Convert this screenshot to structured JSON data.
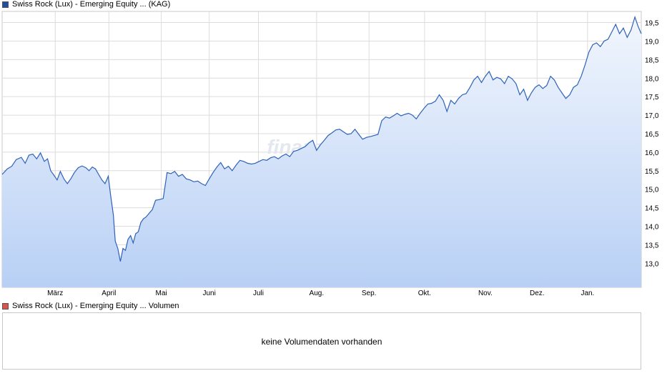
{
  "legend": {
    "price_label": "Swiss Rock (Lux) - Emerging Equity ... (KAG)",
    "price_color": "#1f4fa3",
    "volume_label": "Swiss Rock (Lux) - Emerging Equity ... Volumen",
    "volume_color": "#d9534f"
  },
  "volume": {
    "message": "keine Volumendaten vorhanden"
  },
  "watermark": "finanzen.net",
  "chart_data": {
    "type": "area",
    "y_axis_side": "right",
    "ylim": [
      12.35,
      19.8
    ],
    "y_ticks": [
      13.0,
      13.5,
      14.0,
      14.5,
      15.0,
      15.5,
      16.0,
      16.5,
      17.0,
      17.5,
      18.0,
      18.5,
      19.0,
      19.5
    ],
    "y_tick_labels": [
      "13,0",
      "13,5",
      "14,0",
      "14,5",
      "15,0",
      "15,5",
      "16,0",
      "16,5",
      "17,0",
      "17,5",
      "18,0",
      "18,5",
      "19,0",
      "19,5"
    ],
    "x_ticks": [
      {
        "label": "März",
        "pos": 0.083
      },
      {
        "label": "April",
        "pos": 0.167
      },
      {
        "label": "Mai",
        "pos": 0.249
      },
      {
        "label": "Juni",
        "pos": 0.324
      },
      {
        "label": "Juli",
        "pos": 0.401
      },
      {
        "label": "Aug.",
        "pos": 0.492
      },
      {
        "label": "Sep.",
        "pos": 0.574
      },
      {
        "label": "Okt.",
        "pos": 0.661
      },
      {
        "label": "Nov.",
        "pos": 0.756
      },
      {
        "label": "Dez.",
        "pos": 0.837
      },
      {
        "label": "Jan.",
        "pos": 0.916
      }
    ],
    "grid": true,
    "line_color": "#2e62b8",
    "fill_top_color": "#f2f6fd",
    "fill_bottom_color": "#b8d0f5",
    "series": [
      {
        "points": [
          [
            0.0,
            15.4
          ],
          [
            0.008,
            15.55
          ],
          [
            0.015,
            15.62
          ],
          [
            0.022,
            15.8
          ],
          [
            0.03,
            15.86
          ],
          [
            0.036,
            15.7
          ],
          [
            0.042,
            15.92
          ],
          [
            0.048,
            15.95
          ],
          [
            0.054,
            15.82
          ],
          [
            0.06,
            15.98
          ],
          [
            0.066,
            15.75
          ],
          [
            0.071,
            15.82
          ],
          [
            0.076,
            15.5
          ],
          [
            0.081,
            15.38
          ],
          [
            0.086,
            15.25
          ],
          [
            0.091,
            15.48
          ],
          [
            0.097,
            15.27
          ],
          [
            0.102,
            15.15
          ],
          [
            0.108,
            15.3
          ],
          [
            0.113,
            15.45
          ],
          [
            0.119,
            15.58
          ],
          [
            0.125,
            15.63
          ],
          [
            0.131,
            15.58
          ],
          [
            0.136,
            15.5
          ],
          [
            0.141,
            15.6
          ],
          [
            0.146,
            15.55
          ],
          [
            0.151,
            15.4
          ],
          [
            0.156,
            15.25
          ],
          [
            0.161,
            15.15
          ],
          [
            0.166,
            15.35
          ],
          [
            0.17,
            14.8
          ],
          [
            0.174,
            14.3
          ],
          [
            0.177,
            13.6
          ],
          [
            0.181,
            13.4
          ],
          [
            0.185,
            13.05
          ],
          [
            0.189,
            13.4
          ],
          [
            0.193,
            13.35
          ],
          [
            0.197,
            13.65
          ],
          [
            0.201,
            13.75
          ],
          [
            0.205,
            13.55
          ],
          [
            0.209,
            13.8
          ],
          [
            0.213,
            13.85
          ],
          [
            0.217,
            14.1
          ],
          [
            0.221,
            14.2
          ],
          [
            0.225,
            14.25
          ],
          [
            0.23,
            14.35
          ],
          [
            0.235,
            14.45
          ],
          [
            0.24,
            14.7
          ],
          [
            0.246,
            14.72
          ],
          [
            0.252,
            14.75
          ],
          [
            0.258,
            15.45
          ],
          [
            0.264,
            15.42
          ],
          [
            0.27,
            15.48
          ],
          [
            0.276,
            15.35
          ],
          [
            0.282,
            15.4
          ],
          [
            0.288,
            15.28
          ],
          [
            0.294,
            15.25
          ],
          [
            0.3,
            15.2
          ],
          [
            0.306,
            15.22
          ],
          [
            0.312,
            15.15
          ],
          [
            0.318,
            15.1
          ],
          [
            0.324,
            15.28
          ],
          [
            0.33,
            15.45
          ],
          [
            0.336,
            15.6
          ],
          [
            0.342,
            15.72
          ],
          [
            0.348,
            15.55
          ],
          [
            0.354,
            15.62
          ],
          [
            0.36,
            15.5
          ],
          [
            0.366,
            15.65
          ],
          [
            0.372,
            15.78
          ],
          [
            0.378,
            15.75
          ],
          [
            0.384,
            15.7
          ],
          [
            0.39,
            15.68
          ],
          [
            0.396,
            15.7
          ],
          [
            0.402,
            15.75
          ],
          [
            0.408,
            15.8
          ],
          [
            0.414,
            15.78
          ],
          [
            0.42,
            15.85
          ],
          [
            0.426,
            15.88
          ],
          [
            0.432,
            15.82
          ],
          [
            0.438,
            15.9
          ],
          [
            0.444,
            15.95
          ],
          [
            0.45,
            15.88
          ],
          [
            0.456,
            16.02
          ],
          [
            0.462,
            16.05
          ],
          [
            0.468,
            16.1
          ],
          [
            0.474,
            16.15
          ],
          [
            0.48,
            16.25
          ],
          [
            0.486,
            16.32
          ],
          [
            0.492,
            16.05
          ],
          [
            0.498,
            16.2
          ],
          [
            0.504,
            16.32
          ],
          [
            0.51,
            16.45
          ],
          [
            0.516,
            16.52
          ],
          [
            0.522,
            16.6
          ],
          [
            0.528,
            16.62
          ],
          [
            0.534,
            16.55
          ],
          [
            0.54,
            16.48
          ],
          [
            0.546,
            16.5
          ],
          [
            0.552,
            16.62
          ],
          [
            0.558,
            16.48
          ],
          [
            0.564,
            16.35
          ],
          [
            0.57,
            16.4
          ],
          [
            0.576,
            16.42
          ],
          [
            0.582,
            16.45
          ],
          [
            0.588,
            16.48
          ],
          [
            0.594,
            16.85
          ],
          [
            0.6,
            16.95
          ],
          [
            0.606,
            16.92
          ],
          [
            0.612,
            16.98
          ],
          [
            0.618,
            17.05
          ],
          [
            0.624,
            16.98
          ],
          [
            0.63,
            17.02
          ],
          [
            0.636,
            17.05
          ],
          [
            0.642,
            17.0
          ],
          [
            0.648,
            16.9
          ],
          [
            0.654,
            17.05
          ],
          [
            0.66,
            17.18
          ],
          [
            0.666,
            17.3
          ],
          [
            0.672,
            17.32
          ],
          [
            0.678,
            17.38
          ],
          [
            0.684,
            17.55
          ],
          [
            0.69,
            17.4
          ],
          [
            0.696,
            17.1
          ],
          [
            0.702,
            17.4
          ],
          [
            0.708,
            17.3
          ],
          [
            0.714,
            17.45
          ],
          [
            0.72,
            17.55
          ],
          [
            0.726,
            17.58
          ],
          [
            0.732,
            17.75
          ],
          [
            0.738,
            17.95
          ],
          [
            0.744,
            18.05
          ],
          [
            0.75,
            17.88
          ],
          [
            0.756,
            18.05
          ],
          [
            0.762,
            18.18
          ],
          [
            0.768,
            17.95
          ],
          [
            0.774,
            18.02
          ],
          [
            0.78,
            17.98
          ],
          [
            0.786,
            17.85
          ],
          [
            0.792,
            18.05
          ],
          [
            0.798,
            17.98
          ],
          [
            0.804,
            17.85
          ],
          [
            0.81,
            17.55
          ],
          [
            0.816,
            17.7
          ],
          [
            0.822,
            17.4
          ],
          [
            0.828,
            17.6
          ],
          [
            0.834,
            17.75
          ],
          [
            0.84,
            17.82
          ],
          [
            0.846,
            17.72
          ],
          [
            0.852,
            17.8
          ],
          [
            0.858,
            18.05
          ],
          [
            0.864,
            17.95
          ],
          [
            0.87,
            17.75
          ],
          [
            0.876,
            17.6
          ],
          [
            0.882,
            17.45
          ],
          [
            0.888,
            17.55
          ],
          [
            0.894,
            17.75
          ],
          [
            0.9,
            17.82
          ],
          [
            0.906,
            18.05
          ],
          [
            0.912,
            18.35
          ],
          [
            0.918,
            18.7
          ],
          [
            0.924,
            18.9
          ],
          [
            0.93,
            18.95
          ],
          [
            0.936,
            18.85
          ],
          [
            0.942,
            19.0
          ],
          [
            0.948,
            19.05
          ],
          [
            0.954,
            19.25
          ],
          [
            0.96,
            19.45
          ],
          [
            0.966,
            19.2
          ],
          [
            0.972,
            19.35
          ],
          [
            0.978,
            19.1
          ],
          [
            0.984,
            19.3
          ],
          [
            0.99,
            19.65
          ],
          [
            0.995,
            19.4
          ],
          [
            1.0,
            19.2
          ]
        ]
      }
    ]
  }
}
